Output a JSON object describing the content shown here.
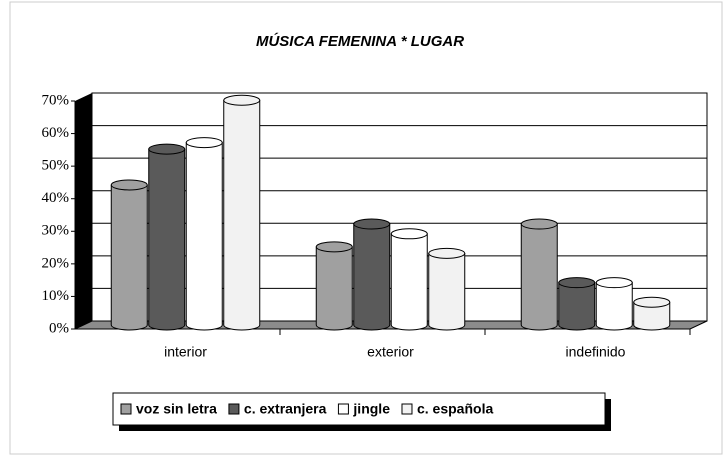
{
  "chart_data": {
    "type": "bar3d",
    "title": "MÚSICA FEMENINA *  LUGAR",
    "categories": [
      "interior",
      "exterior",
      "indefinido"
    ],
    "series": [
      {
        "name": "voz sin letra",
        "color": "#a0a0a0",
        "values": [
          43,
          24,
          31
        ]
      },
      {
        "name": "c. extranjera",
        "color": "#5a5a5a",
        "values": [
          54,
          31,
          13
        ]
      },
      {
        "name": "jingle",
        "color": "#ffffff",
        "values": [
          56,
          28,
          13
        ]
      },
      {
        "name": "c. española",
        "color": "#f2f2f2",
        "values": [
          69,
          22,
          7
        ]
      }
    ],
    "ylim": [
      0,
      70
    ],
    "yticks": [
      {
        "value": 0,
        "label": "0%"
      },
      {
        "value": 10,
        "label": "10%"
      },
      {
        "value": 20,
        "label": "20%"
      },
      {
        "value": 30,
        "label": "30%"
      },
      {
        "value": 40,
        "label": "40%"
      },
      {
        "value": 50,
        "label": "50%"
      },
      {
        "value": 60,
        "label": "60%"
      },
      {
        "value": 70,
        "label": "70%"
      }
    ],
    "grid": true,
    "legend": "bottom"
  }
}
